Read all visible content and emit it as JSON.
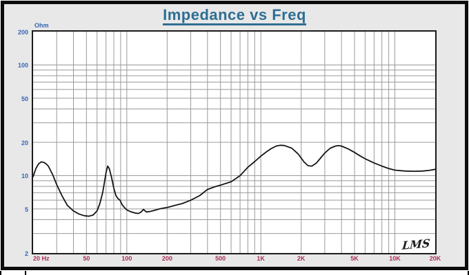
{
  "title": "Impedance vs Freq",
  "watermark": "LMS",
  "y_axis": {
    "unit_label": "Ohm",
    "tick_values": [
      200,
      100,
      50,
      20,
      10,
      5,
      2
    ],
    "min": 2,
    "max": 200,
    "scale": "log"
  },
  "x_axis": {
    "unit_label": "Hz",
    "ticks": [
      {
        "value": 20,
        "label": "20 Hz"
      },
      {
        "value": 50,
        "label": "50"
      },
      {
        "value": 100,
        "label": "100"
      },
      {
        "value": 200,
        "label": "200"
      },
      {
        "value": 500,
        "label": "500"
      },
      {
        "value": 1000,
        "label": "1K"
      },
      {
        "value": 2000,
        "label": "2K"
      },
      {
        "value": 5000,
        "label": "5K"
      },
      {
        "value": 10000,
        "label": "10K"
      },
      {
        "value": 20000,
        "label": "20K"
      }
    ],
    "min": 20,
    "max": 20000,
    "scale": "log"
  },
  "colors": {
    "panel_background": "#e8e8e8",
    "frame": "#0c0c0c",
    "title_text": "#2e6e93",
    "y_label_text": "#3366b2",
    "x_label_text": "#aa2d55",
    "grid_line": "#999999",
    "curve": "#141414",
    "plot_background": "#ffffff"
  },
  "chart_data": {
    "type": "line",
    "title": "Impedance vs Freq",
    "ylabel": "Ohm",
    "x_unit": "Hz",
    "x_scale": "log",
    "y_scale": "log",
    "xlim": [
      20,
      20000
    ],
    "ylim": [
      2,
      200
    ],
    "grid": true,
    "series": [
      {
        "name": "impedance",
        "points": [
          [
            20,
            9.8
          ],
          [
            21,
            11.6
          ],
          [
            22,
            12.8
          ],
          [
            23,
            13.3
          ],
          [
            24,
            13.2
          ],
          [
            25,
            12.8
          ],
          [
            26,
            12.2
          ],
          [
            28,
            10.2
          ],
          [
            30,
            8.3
          ],
          [
            33,
            6.5
          ],
          [
            36,
            5.4
          ],
          [
            40,
            4.8
          ],
          [
            44,
            4.5
          ],
          [
            48,
            4.35
          ],
          [
            52,
            4.3
          ],
          [
            56,
            4.4
          ],
          [
            60,
            4.8
          ],
          [
            63,
            5.6
          ],
          [
            66,
            7.0
          ],
          [
            68,
            8.6
          ],
          [
            70,
            10.6
          ],
          [
            72,
            12.2
          ],
          [
            74,
            11.6
          ],
          [
            77,
            9.6
          ],
          [
            80,
            7.7
          ],
          [
            83,
            6.6
          ],
          [
            86,
            6.2
          ],
          [
            89,
            6.0
          ],
          [
            92,
            5.5
          ],
          [
            96,
            5.15
          ],
          [
            100,
            4.9
          ],
          [
            108,
            4.7
          ],
          [
            115,
            4.6
          ],
          [
            122,
            4.55
          ],
          [
            128,
            4.7
          ],
          [
            133,
            4.95
          ],
          [
            140,
            4.7
          ],
          [
            150,
            4.75
          ],
          [
            160,
            4.85
          ],
          [
            175,
            5.0
          ],
          [
            190,
            5.1
          ],
          [
            200,
            5.15
          ],
          [
            230,
            5.4
          ],
          [
            260,
            5.6
          ],
          [
            300,
            6.0
          ],
          [
            350,
            6.6
          ],
          [
            400,
            7.5
          ],
          [
            450,
            7.9
          ],
          [
            500,
            8.2
          ],
          [
            600,
            8.8
          ],
          [
            700,
            10.0
          ],
          [
            800,
            11.9
          ],
          [
            900,
            13.4
          ],
          [
            1000,
            15.0
          ],
          [
            1100,
            16.4
          ],
          [
            1200,
            17.6
          ],
          [
            1300,
            18.5
          ],
          [
            1400,
            18.8
          ],
          [
            1500,
            18.7
          ],
          [
            1700,
            17.7
          ],
          [
            1900,
            15.7
          ],
          [
            2100,
            13.3
          ],
          [
            2250,
            12.3
          ],
          [
            2400,
            12.2
          ],
          [
            2600,
            13.0
          ],
          [
            2800,
            14.5
          ],
          [
            3000,
            16.0
          ],
          [
            3300,
            17.7
          ],
          [
            3600,
            18.5
          ],
          [
            3800,
            18.7
          ],
          [
            4000,
            18.5
          ],
          [
            4500,
            17.4
          ],
          [
            5000,
            16.2
          ],
          [
            5500,
            15.1
          ],
          [
            6000,
            14.2
          ],
          [
            7000,
            13.0
          ],
          [
            8000,
            12.2
          ],
          [
            9000,
            11.6
          ],
          [
            10000,
            11.2
          ],
          [
            12000,
            11.0
          ],
          [
            14000,
            10.95
          ],
          [
            16000,
            11.0
          ],
          [
            18000,
            11.15
          ],
          [
            20000,
            11.4
          ]
        ]
      }
    ]
  }
}
